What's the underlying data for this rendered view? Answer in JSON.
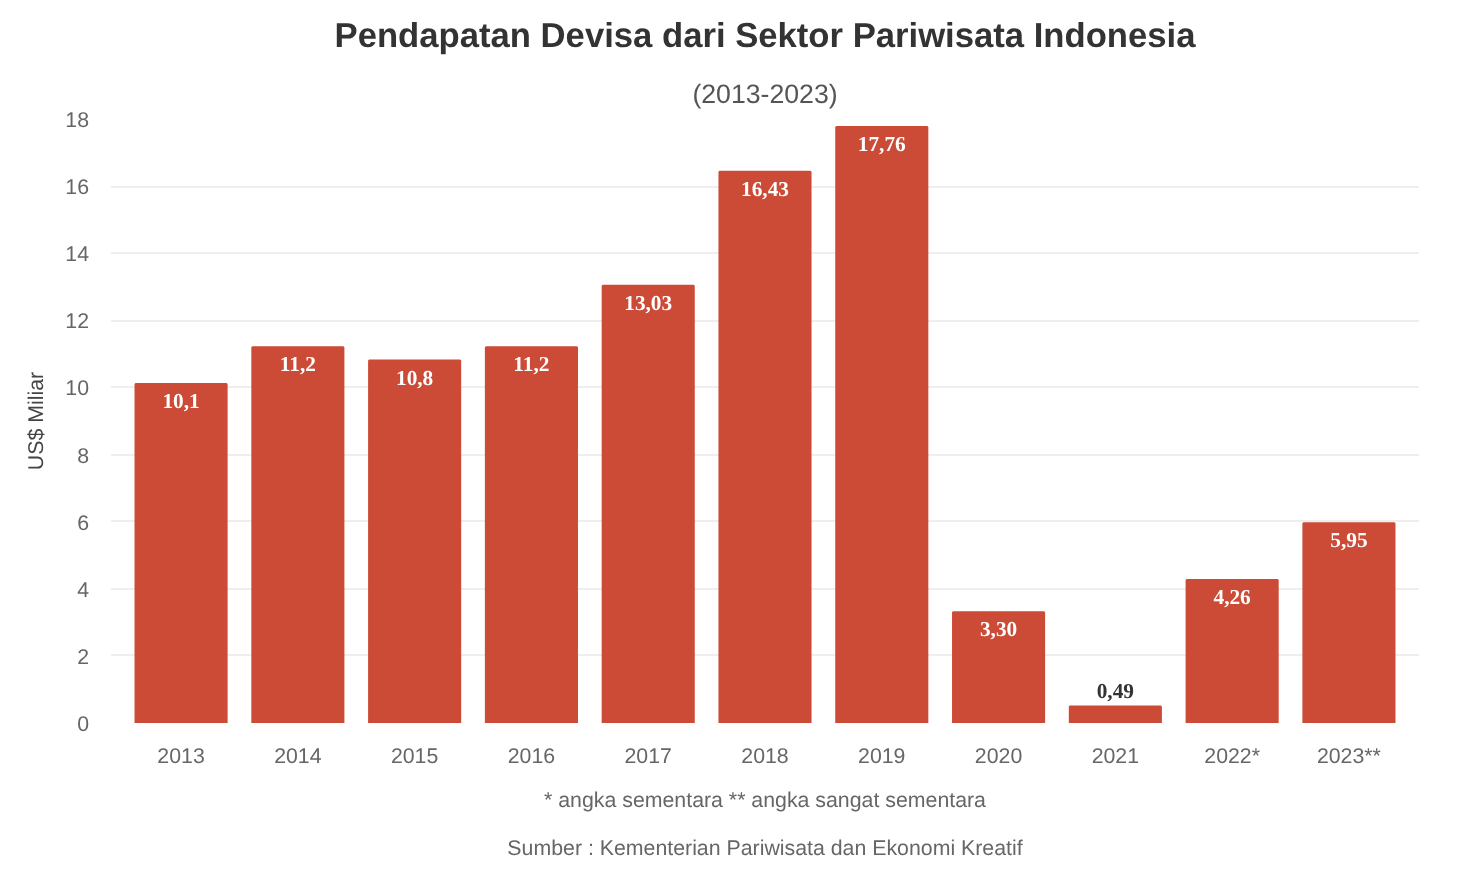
{
  "chart_data": {
    "type": "bar",
    "title": "Pendapatan Devisa dari Sektor Pariwisata Indonesia",
    "subtitle": "(2013-2023)",
    "ylabel": "US$ Miliar",
    "categories": [
      "2013",
      "2014",
      "2015",
      "2016",
      "2017",
      "2018",
      "2019",
      "2020",
      "2021",
      "2022*",
      "2023**"
    ],
    "values": [
      10.1,
      11.2,
      10.8,
      11.2,
      13.03,
      16.43,
      17.76,
      3.3,
      0.49,
      4.26,
      5.95
    ],
    "value_labels": [
      "10,1",
      "11,2",
      "10,8",
      "11,2",
      "13,03",
      "16,43",
      "17,76",
      "3,30",
      "0,49",
      "4,26",
      "5,95"
    ],
    "color": "#cc4b37",
    "ylim": [
      0,
      18
    ],
    "yticks": [
      0,
      2,
      4,
      6,
      8,
      10,
      12,
      14,
      16,
      18
    ],
    "grid": "y",
    "annotations": [
      "Sumber : Kementerian Pariwisata dan Ekonomi Kreatif",
      "* angka sementara ** angka sangat sementara"
    ]
  }
}
